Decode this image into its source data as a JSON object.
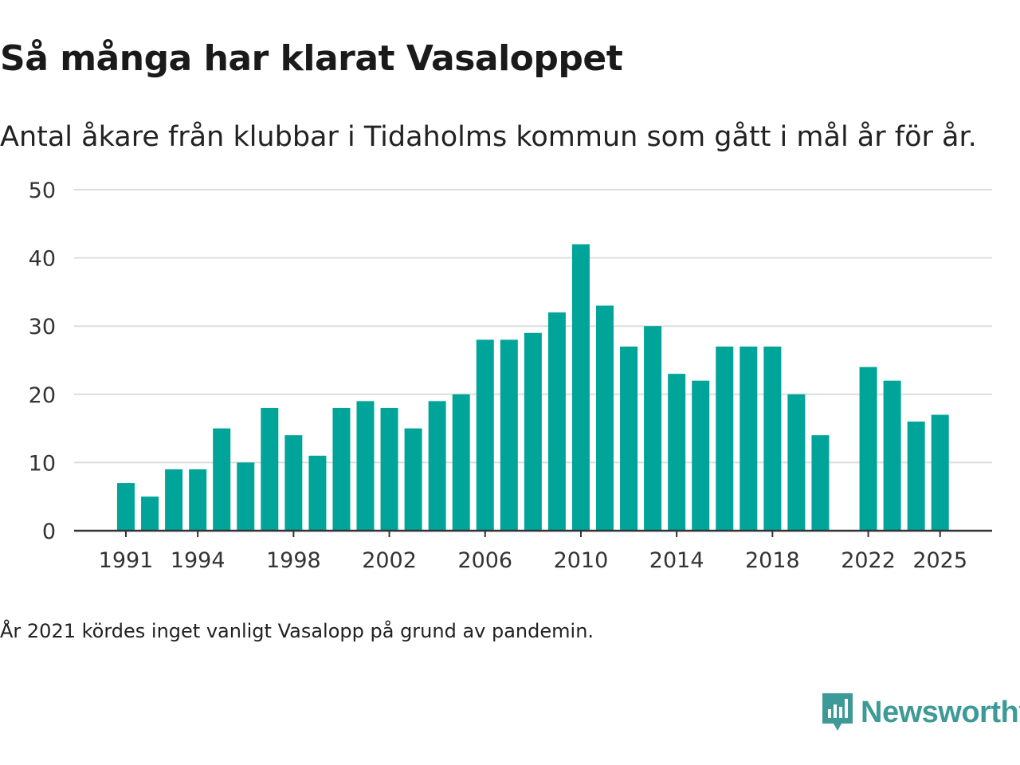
{
  "header": {
    "title": "Så många har klarat Vasaloppet",
    "subtitle": "Antal åkare från klubbar i Tidaholms kommun som gått i mål år för år."
  },
  "footer": {
    "note": "År 2021 kördes inget vanligt Vasalopp på grund av pandemin.",
    "brand": "Newsworthy",
    "brand_icon": "newsworthy-logo-icon"
  },
  "colors": {
    "bar": "#00a499",
    "grid": "#dddddd",
    "axis": "#333333",
    "brand": "#3d9a97"
  },
  "chart_data": {
    "type": "bar",
    "title": "Så många har klarat Vasaloppet",
    "xlabel": "",
    "ylabel": "",
    "ylim": [
      0,
      50
    ],
    "yticks": [
      0,
      10,
      20,
      30,
      40,
      50
    ],
    "xticks": [
      1991,
      1994,
      1998,
      2002,
      2006,
      2010,
      2014,
      2018,
      2022,
      2025
    ],
    "categories": [
      1991,
      1992,
      1993,
      1994,
      1995,
      1996,
      1997,
      1998,
      1999,
      2000,
      2001,
      2002,
      2003,
      2004,
      2005,
      2006,
      2007,
      2008,
      2009,
      2010,
      2011,
      2012,
      2013,
      2014,
      2015,
      2016,
      2017,
      2018,
      2019,
      2020,
      2021,
      2022,
      2023,
      2024,
      2025
    ],
    "values": [
      7,
      5,
      9,
      9,
      15,
      10,
      18,
      14,
      11,
      18,
      19,
      18,
      15,
      19,
      20,
      28,
      28,
      29,
      32,
      42,
      33,
      27,
      30,
      23,
      22,
      27,
      27,
      27,
      20,
      14,
      null,
      24,
      22,
      16,
      17
    ],
    "grid": true
  }
}
